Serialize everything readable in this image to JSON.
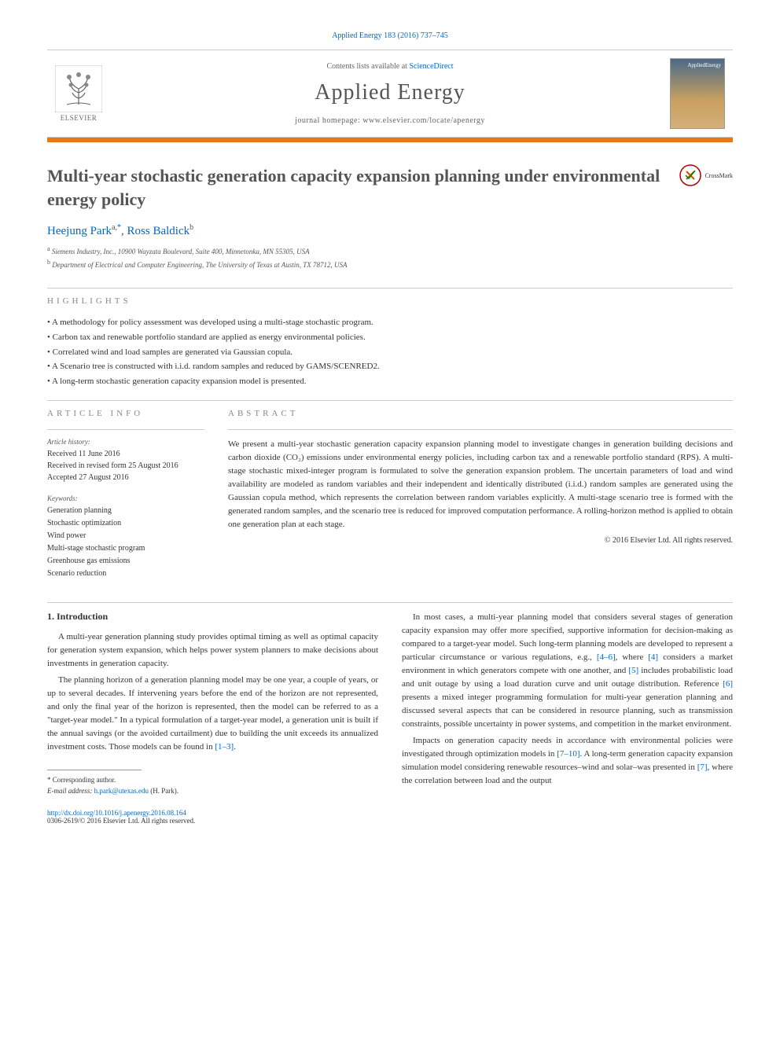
{
  "citation": "Applied Energy 183 (2016) 737–745",
  "masthead": {
    "contents_prefix": "Contents lists available at ",
    "contents_link": "ScienceDirect",
    "journal": "Applied Energy",
    "homepage_prefix": "journal homepage: ",
    "homepage": "www.elsevier.com/locate/apenergy",
    "publisher_label": "ELSEVIER",
    "cover_label": "AppliedEnergy"
  },
  "article": {
    "title": "Multi-year stochastic generation capacity expansion planning under environmental energy policy",
    "crossmark": "CrossMark",
    "authors_html_parts": {
      "a1_name": "Heejung Park",
      "a1_sup": "a,",
      "a1_corr": "*",
      "sep": ", ",
      "a2_name": "Ross Baldick",
      "a2_sup": "b"
    },
    "affiliations": {
      "a": "Siemens Industry, Inc., 10900 Wayzata Boulevard, Suite 400, Minnetonka, MN 55305, USA",
      "b": "Department of Electrical and Computer Engineering, The University of Texas at Austin, TX 78712, USA"
    }
  },
  "highlights": {
    "heading": "HIGHLIGHTS",
    "items": [
      "A methodology for policy assessment was developed using a multi-stage stochastic program.",
      "Carbon tax and renewable portfolio standard are applied as energy environmental policies.",
      "Correlated wind and load samples are generated via Gaussian copula.",
      "A Scenario tree is constructed with i.i.d. random samples and reduced by GAMS/SCENRED2.",
      "A long-term stochastic generation capacity expansion model is presented."
    ]
  },
  "article_info": {
    "heading": "ARTICLE INFO",
    "history_label": "Article history:",
    "history": [
      "Received 11 June 2016",
      "Received in revised form 25 August 2016",
      "Accepted 27 August 2016"
    ],
    "keywords_label": "Keywords:",
    "keywords": [
      "Generation planning",
      "Stochastic optimization",
      "Wind power",
      "Multi-stage stochastic program",
      "Greenhouse gas emissions",
      "Scenario reduction"
    ]
  },
  "abstract": {
    "heading": "ABSTRACT",
    "text": "We present a multi-year stochastic generation capacity expansion planning model to investigate changes in generation building decisions and carbon dioxide (CO₂) emissions under environmental energy policies, including carbon tax and a renewable portfolio standard (RPS). A multi-stage stochastic mixed-integer program is formulated to solve the generation expansion problem. The uncertain parameters of load and wind availability are modeled as random variables and their independent and identically distributed (i.i.d.) random samples are generated using the Gaussian copula method, which represents the correlation between random variables explicitly. A multi-stage scenario tree is formed with the generated random samples, and the scenario tree is reduced for improved computation performance. A rolling-horizon method is applied to obtain one generation plan at each stage.",
    "copyright": "© 2016 Elsevier Ltd. All rights reserved."
  },
  "body": {
    "section_heading": "1. Introduction",
    "left_paragraphs": [
      "A multi-year generation planning study provides optimal timing as well as optimal capacity for generation system expansion, which helps power system planners to make decisions about investments in generation capacity.",
      "The planning horizon of a generation planning model may be one year, a couple of years, or up to several decades. If intervening years before the end of the horizon are not represented, and only the final year of the horizon is represented, then the model can be referred to as a \"target-year model.\" In a typical formulation of a target-year model, a generation unit is built if the annual savings (or the avoided curtailment) due to building the unit exceeds its annualized investment costs. Those models can be found in [1–3]."
    ],
    "right_paragraphs": [
      "In most cases, a multi-year planning model that considers several stages of generation capacity expansion may offer more specified, supportive information for decision-making as compared to a target-year model. Such long-term planning models are developed to represent a particular circumstance or various regulations, e.g., [4–6], where [4] considers a market environment in which generators compete with one another, and [5] includes probabilistic load and unit outage by using a load duration curve and unit outage distribution. Reference [6] presents a mixed integer programming formulation for multi-year generation planning and discussed several aspects that can be considered in resource planning, such as transmission constraints, possible uncertainty in power systems, and competition in the market environment.",
      "Impacts on generation capacity needs in accordance with environmental policies were investigated through optimization models in [7–10]. A long-term generation capacity expansion simulation model considering renewable resources–wind and solar–was presented in [7], where the correlation between load and the output"
    ],
    "refs": {
      "r1_3": "[1–3]",
      "r4_6": "[4–6]",
      "r4": "[4]",
      "r5": "[5]",
      "r6": "[6]",
      "r7_10": "[7–10]",
      "r7": "[7]"
    }
  },
  "footnote": {
    "corr_label": "* Corresponding author.",
    "email_label": "E-mail address: ",
    "email": "h.park@utexas.edu",
    "email_suffix": " (H. Park)."
  },
  "footer": {
    "doi_prefix": "http://dx.doi.org/",
    "doi": "10.1016/j.apenergy.2016.08.164",
    "issn_line": "0306-2619/© 2016 Elsevier Ltd. All rights reserved."
  },
  "colors": {
    "link": "#0066cc",
    "orange_bar": "#e67817",
    "heading_gray": "#888888",
    "title_gray": "#555555",
    "body_text": "#333333",
    "border": "#cccccc"
  }
}
